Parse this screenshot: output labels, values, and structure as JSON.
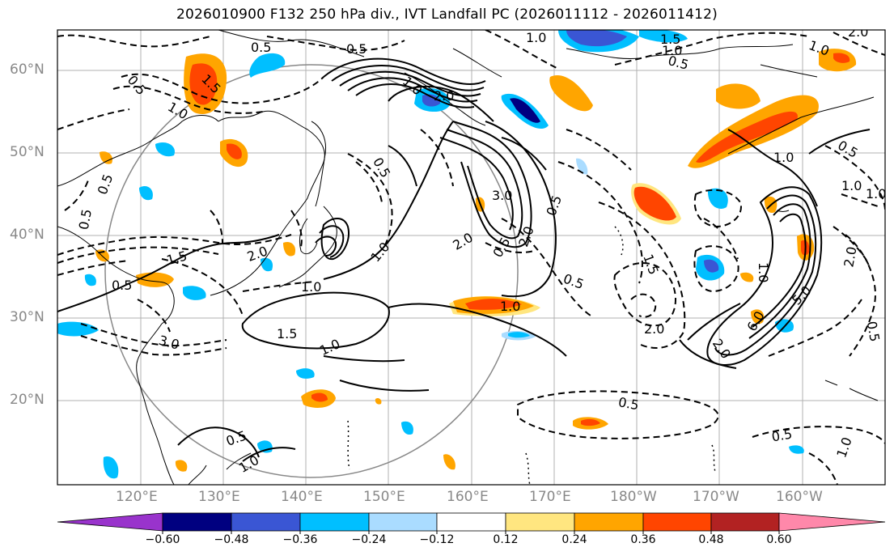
{
  "title": "2026010900 F132 250 hPa div., IVT Landfall PC (2026011112 - 2026011412)",
  "lat_ticks": [
    "60°N",
    "50°N",
    "40°N",
    "30°N",
    "20°N"
  ],
  "lon_ticks": [
    "120°E",
    "130°E",
    "140°E",
    "150°E",
    "160°E",
    "170°E",
    "180°W",
    "170°W",
    "160°W"
  ],
  "contour_labels": [
    "0.5",
    "0.5",
    "1.0",
    "1.5",
    "1.0",
    "1.5",
    "1.0",
    "0.5",
    "1.0",
    "2.0",
    "2.0",
    "0.5",
    "0.5",
    "1.0",
    "3.0",
    "2.0",
    "0.5",
    "2.0",
    "0.5",
    "1.5",
    "2.0",
    "0.5",
    "1.0",
    "0.5",
    "2.0",
    "1.0",
    "3.0",
    "1.5",
    "1.0",
    "0.5",
    "1.0",
    "5.0",
    "2.0",
    "1.0",
    "0.5",
    "0.5",
    "1.0",
    "6.0",
    "0.5",
    "2.0",
    "0.5",
    "1.0",
    "0.5",
    "1.0",
    "1.0",
    "0.5",
    "1.5",
    "1.0"
  ],
  "colorbar": {
    "ticks": [
      "−0.60",
      "−0.48",
      "−0.36",
      "−0.24",
      "−0.12",
      "0.12",
      "0.24",
      "0.36",
      "0.48",
      "0.60"
    ],
    "colors": [
      "#9933cc",
      "#000080",
      "#3a56d4",
      "#00bfff",
      "#aadcff",
      "#ffffff",
      "#ffe680",
      "#ffa500",
      "#ff4500",
      "#b22222",
      "#ff88aa"
    ]
  }
}
